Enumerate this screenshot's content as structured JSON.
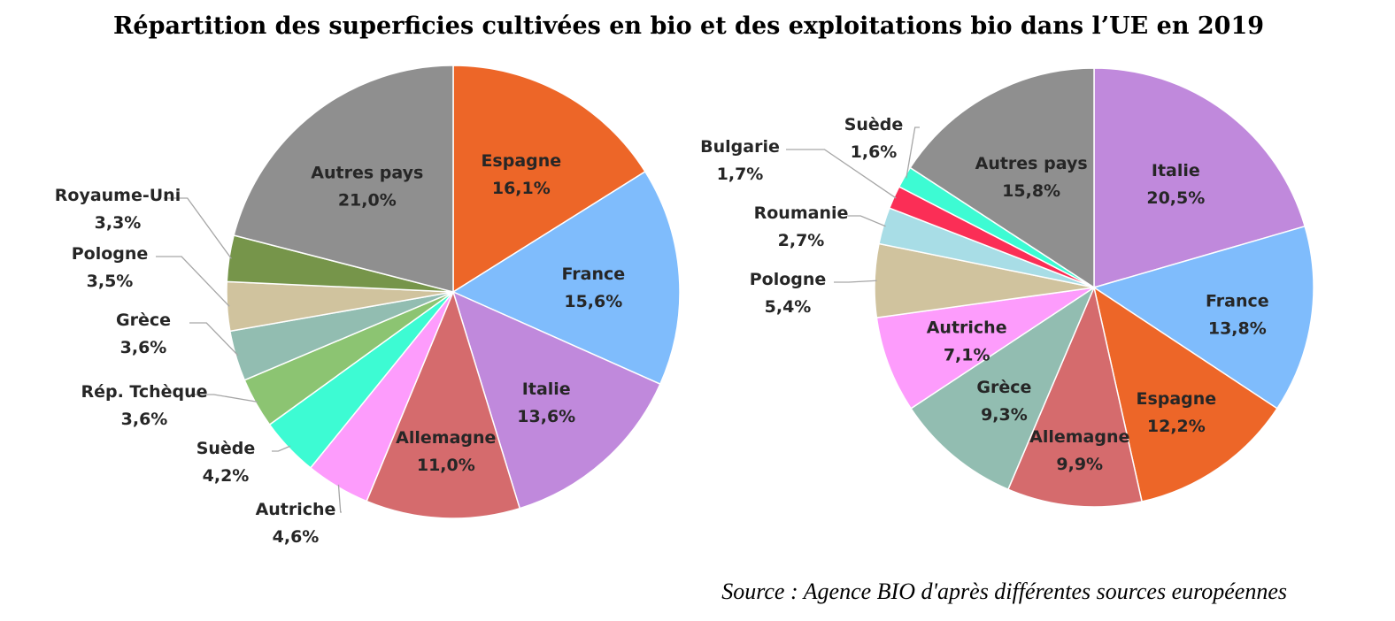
{
  "title": "Répartition des superficies cultivées en bio et des exploitations bio dans l’UE en 2019",
  "source": "Source : Agence BIO d'après différentes sources européennes",
  "chart_data": [
    {
      "type": "pie",
      "slices": [
        {
          "label": "Espagne",
          "value": 16.1,
          "display": "16,1%",
          "color": "#ED6628"
        },
        {
          "label": "France",
          "value": 15.6,
          "display": "15,6%",
          "color": "#7FBCFC"
        },
        {
          "label": "Italie",
          "value": 13.6,
          "display": "13,6%",
          "color": "#C089DC"
        },
        {
          "label": "Allemagne",
          "value": 11.0,
          "display": "11,0%",
          "color": "#D56B6D"
        },
        {
          "label": "Autriche",
          "value": 4.6,
          "display": "4,6%",
          "color": "#FD9CFC"
        },
        {
          "label": "Suède",
          "value": 4.2,
          "display": "4,2%",
          "color": "#3DFBD3"
        },
        {
          "label": "Rép. Tchèque",
          "value": 3.6,
          "display": "3,6%",
          "color": "#8CC472"
        },
        {
          "label": "Grèce",
          "value": 3.6,
          "display": "3,6%",
          "color": "#92BDB1"
        },
        {
          "label": "Pologne",
          "value": 3.5,
          "display": "3,5%",
          "color": "#D0C39E"
        },
        {
          "label": "Royaume-Uni",
          "value": 3.3,
          "display": "3,3%",
          "color": "#76954A"
        },
        {
          "label": "Autres pays",
          "value": 21.0,
          "display": "21,0%",
          "color": "#8F8F8F"
        }
      ]
    },
    {
      "type": "pie",
      "slices": [
        {
          "label": "Italie",
          "value": 20.5,
          "display": "20,5%",
          "color": "#C089DC"
        },
        {
          "label": "France",
          "value": 13.8,
          "display": "13,8%",
          "color": "#7FBCFC"
        },
        {
          "label": "Espagne",
          "value": 12.2,
          "display": "12,2%",
          "color": "#ED6628"
        },
        {
          "label": "Allemagne",
          "value": 9.9,
          "display": "9,9%",
          "color": "#D56B6D"
        },
        {
          "label": "Grèce",
          "value": 9.3,
          "display": "9,3%",
          "color": "#92BDB1"
        },
        {
          "label": "Autriche",
          "value": 7.1,
          "display": "7,1%",
          "color": "#FD9CFC"
        },
        {
          "label": "Pologne",
          "value": 5.4,
          "display": "5,4%",
          "color": "#D0C39E"
        },
        {
          "label": "Roumanie",
          "value": 2.7,
          "display": "2,7%",
          "color": "#A8DDE6"
        },
        {
          "label": "Bulgarie",
          "value": 1.7,
          "display": "1,7%",
          "color": "#FB2E56"
        },
        {
          "label": "Suède",
          "value": 1.6,
          "display": "1,6%",
          "color": "#3DFBD3"
        },
        {
          "label": "Autres pays",
          "value": 15.8,
          "display": "15,8%",
          "color": "#8F8F8F"
        }
      ]
    }
  ]
}
